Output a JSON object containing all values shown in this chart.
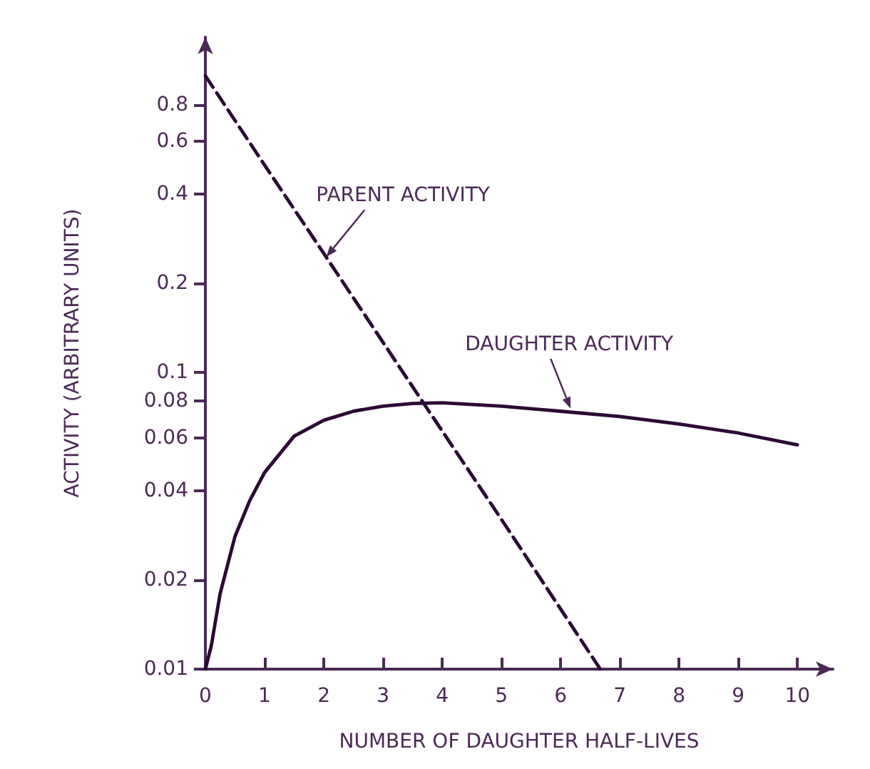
{
  "chart_data": {
    "type": "line",
    "xlabel": "NUMBER OF DAUGHTER HALF-LIVES",
    "ylabel": "ACTIVITY (ARBITRARY UNITS)",
    "log": "y",
    "grid": false,
    "marker": "none",
    "xlim": [
      0,
      10.6
    ],
    "xticks": [
      0,
      1,
      2,
      3,
      4,
      5,
      6,
      7,
      8,
      9,
      10
    ],
    "ylim": [
      0.01,
      1.35
    ],
    "yticks": [
      0.01,
      0.02,
      0.04,
      0.06,
      0.08,
      0.1,
      0.2,
      0.4,
      0.6,
      0.8
    ],
    "series": [
      {
        "color": "#2b0a33",
        "line_style": "dashed",
        "x": [
          0,
          1,
          2.04,
          3.7,
          5,
          6.67
        ],
        "values": [
          1.0,
          0.5,
          0.245,
          0.078,
          0.032,
          0.01
        ]
      },
      {
        "color": "#2b0a33",
        "line_style": "solid",
        "x": [
          0,
          0.1,
          0.25,
          0.5,
          0.75,
          1,
          1.5,
          2,
          2.5,
          3,
          3.5,
          4,
          5,
          6,
          7,
          8,
          9,
          10
        ],
        "values": [
          0.01,
          0.012,
          0.018,
          0.028,
          0.037,
          0.046,
          0.061,
          0.069,
          0.074,
          0.077,
          0.0786,
          0.079,
          0.077,
          0.074,
          0.071,
          0.067,
          0.0625,
          0.057
        ]
      }
    ],
    "annotations": [
      {
        "text": "PARENT ACTIVITY",
        "x": 2.04,
        "y": 0.245
      },
      {
        "text": "DAUGHTER ACTIVITY",
        "x": 6.17,
        "y": 0.0755
      }
    ]
  }
}
